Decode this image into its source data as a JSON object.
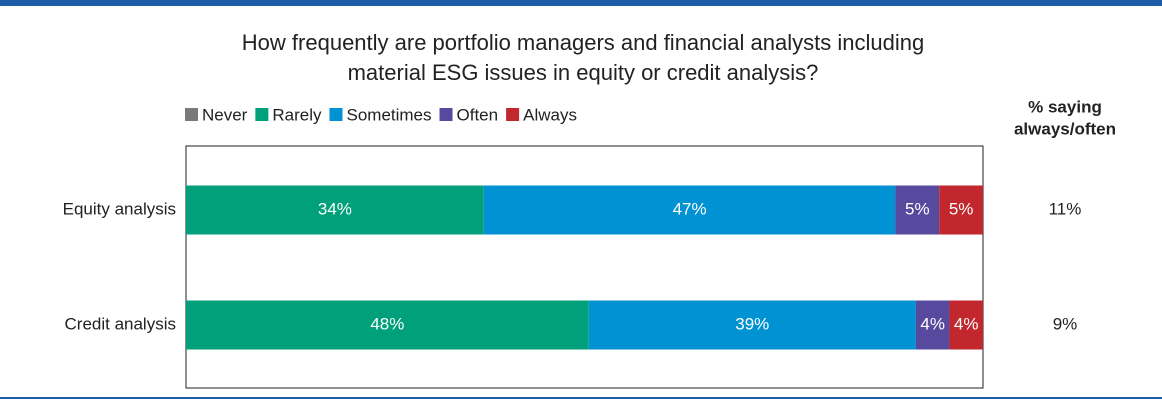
{
  "chart_data": {
    "type": "stacked_barh",
    "normalize_rows": true,
    "title": "How frequently are portfolio managers and financial analysts including material ESG issues in equity or credit analysis?",
    "categories": [
      "Equity analysis",
      "Credit analysis"
    ],
    "series": [
      {
        "name": "Never",
        "color": "#7a7a7a",
        "values": [
          0,
          0
        ]
      },
      {
        "name": "Rarely",
        "color": "#00a07a",
        "values": [
          34,
          48
        ],
        "value_labels": [
          "34%",
          "48%"
        ]
      },
      {
        "name": "Sometimes",
        "color": "#0092d2",
        "values": [
          47,
          39
        ],
        "value_labels": [
          "47%",
          "39%"
        ]
      },
      {
        "name": "Often",
        "color": "#574a9e",
        "values": [
          5,
          4
        ],
        "value_labels": [
          "5%",
          "4%"
        ]
      },
      {
        "name": "Always",
        "color": "#c1272d",
        "values": [
          5,
          4
        ],
        "value_labels": [
          "5%",
          "4%"
        ]
      }
    ],
    "side_column": {
      "header": [
        "% saying",
        "always/often"
      ],
      "values": [
        11,
        9
      ],
      "value_labels": [
        "11%",
        "9%"
      ]
    }
  }
}
